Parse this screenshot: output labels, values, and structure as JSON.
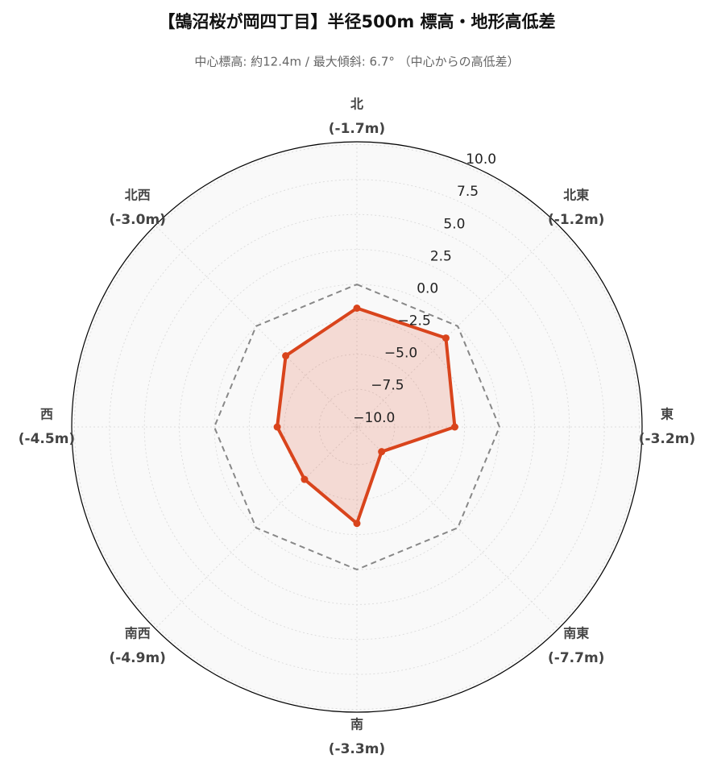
{
  "chart_data": {
    "type": "radar",
    "title": "【鵠沼桜が岡四丁目】半径500m 標高・地形高低差",
    "subtitle": "中心標高: 約12.4m / 最大傾斜: 6.7° （中心からの高低差）",
    "categories": [
      "北",
      "北東",
      "東",
      "南東",
      "南",
      "南西",
      "西",
      "北西"
    ],
    "series": [
      {
        "color": "#888888",
        "dash": true,
        "fill": false,
        "values": [
          0,
          0,
          0,
          0,
          0,
          0,
          0,
          0
        ]
      },
      {
        "color": "#d9441c",
        "dash": false,
        "fill": true,
        "values": [
          -1.7,
          -1.2,
          -3.2,
          -7.7,
          -3.3,
          -4.9,
          -4.5,
          -3.0
        ],
        "value_labels": [
          "(-1.7m)",
          "(-1.2m)",
          "(-3.2m)",
          "(-7.7m)",
          "(-3.3m)",
          "(-4.9m)",
          "(-4.5m)",
          "(-3.0m)"
        ]
      }
    ],
    "ylim": [
      -10.2,
      10.2
    ],
    "yticks": [
      {
        "value": -10,
        "label": "−10.0"
      },
      {
        "value": -7.5,
        "label": "−7.5"
      },
      {
        "value": -5,
        "label": "−5.0"
      },
      {
        "value": -2.5,
        "label": "−2.5"
      },
      {
        "value": 0,
        "label": "0.0"
      },
      {
        "value": 2.5,
        "label": "2.5"
      },
      {
        "value": 5,
        "label": "5.0"
      },
      {
        "value": 7.5,
        "label": "7.5"
      },
      {
        "value": 10,
        "label": "10.0"
      }
    ],
    "grid": true
  }
}
